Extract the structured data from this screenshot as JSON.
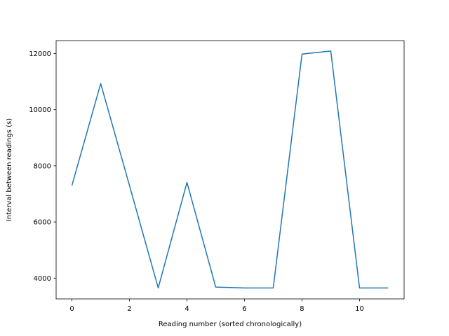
{
  "chart_data": {
    "type": "line",
    "title": "",
    "xlabel": "Reading number (sorted chronologically)",
    "ylabel": "Interval between readings (s)",
    "xlim": [
      -0.55,
      11.55
    ],
    "ylim": [
      3260,
      12460
    ],
    "x_ticks": [
      0,
      2,
      4,
      6,
      8,
      10
    ],
    "y_ticks": [
      4000,
      6000,
      8000,
      10000,
      12000
    ],
    "grid": false,
    "series": [
      {
        "color": "#1f77b4",
        "x": [
          0,
          1,
          2,
          3,
          4,
          5,
          6,
          7,
          8,
          9,
          10,
          11
        ],
        "values": [
          7300,
          10930,
          7300,
          3650,
          7410,
          3680,
          3650,
          3650,
          11980,
          12090,
          3650,
          3650
        ]
      }
    ]
  }
}
